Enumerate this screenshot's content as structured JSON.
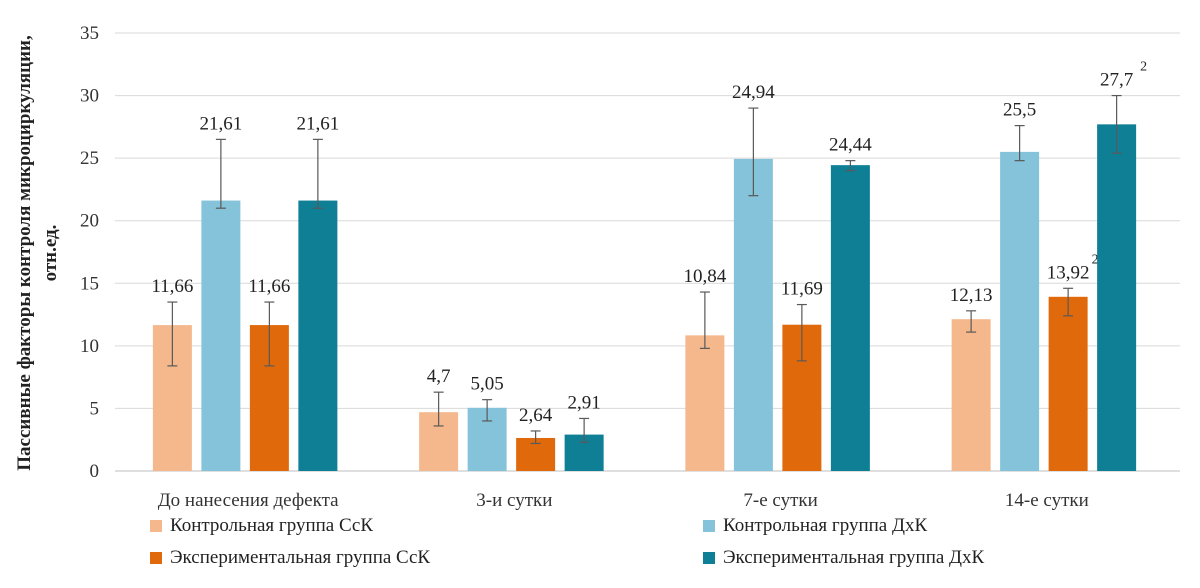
{
  "chart_data": {
    "type": "bar",
    "title": "",
    "xlabel": "",
    "ylabel": "Пассивные факторы контроля микроциркуляции, отн.ед.",
    "ylabel_lines": [
      "Пассивные факторы контроля микроциркуляции,",
      "отн.ед."
    ],
    "ylim": [
      0,
      35
    ],
    "yticks": [
      0,
      5,
      10,
      15,
      20,
      25,
      30,
      35
    ],
    "grid": true,
    "legend_position": "bottom",
    "categories": [
      "До нанесения дефекта",
      "3-и сутки",
      "7-е сутки",
      "14-е сутки"
    ],
    "series": [
      {
        "name": "Контрольная группа СсК",
        "color": "#F4B88C",
        "values": [
          11.66,
          4.7,
          10.84,
          12.13
        ],
        "labels": [
          "11,66",
          "4,7",
          "10,84",
          "12,13"
        ],
        "error_low": [
          8.4,
          3.6,
          9.8,
          11.1
        ],
        "error_high": [
          13.5,
          6.3,
          14.3,
          12.8
        ],
        "superscripts": [
          "",
          "",
          "",
          ""
        ]
      },
      {
        "name": "Контрольная группа ДхК",
        "color": "#85C3DA",
        "values": [
          21.61,
          5.05,
          24.94,
          25.5
        ],
        "labels": [
          "21,61",
          "5,05",
          "24,94",
          "25,5"
        ],
        "error_low": [
          21.0,
          4.0,
          22.0,
          24.8
        ],
        "error_high": [
          26.5,
          5.7,
          29.0,
          27.6
        ],
        "superscripts": [
          "",
          "",
          "",
          ""
        ]
      },
      {
        "name": "Экспериментальная группа СсК",
        "color": "#E0690C",
        "values": [
          11.66,
          2.64,
          11.69,
          13.92
        ],
        "labels": [
          "11,66",
          "2,64",
          "11,69",
          "13,92"
        ],
        "error_low": [
          8.4,
          2.2,
          8.8,
          12.4
        ],
        "error_high": [
          13.5,
          3.2,
          13.3,
          14.6
        ],
        "superscripts": [
          "",
          "",
          "",
          "2"
        ]
      },
      {
        "name": "Экспериментальная группа ДхК",
        "color": "#0F7F96",
        "values": [
          21.61,
          2.91,
          24.44,
          27.7
        ],
        "labels": [
          "21,61",
          "2,91",
          "24,44",
          "27,7"
        ],
        "error_low": [
          21.0,
          2.3,
          24.0,
          25.4
        ],
        "error_high": [
          26.5,
          4.2,
          24.8,
          30.0
        ],
        "superscripts": [
          "",
          "",
          "",
          "2"
        ]
      }
    ]
  }
}
